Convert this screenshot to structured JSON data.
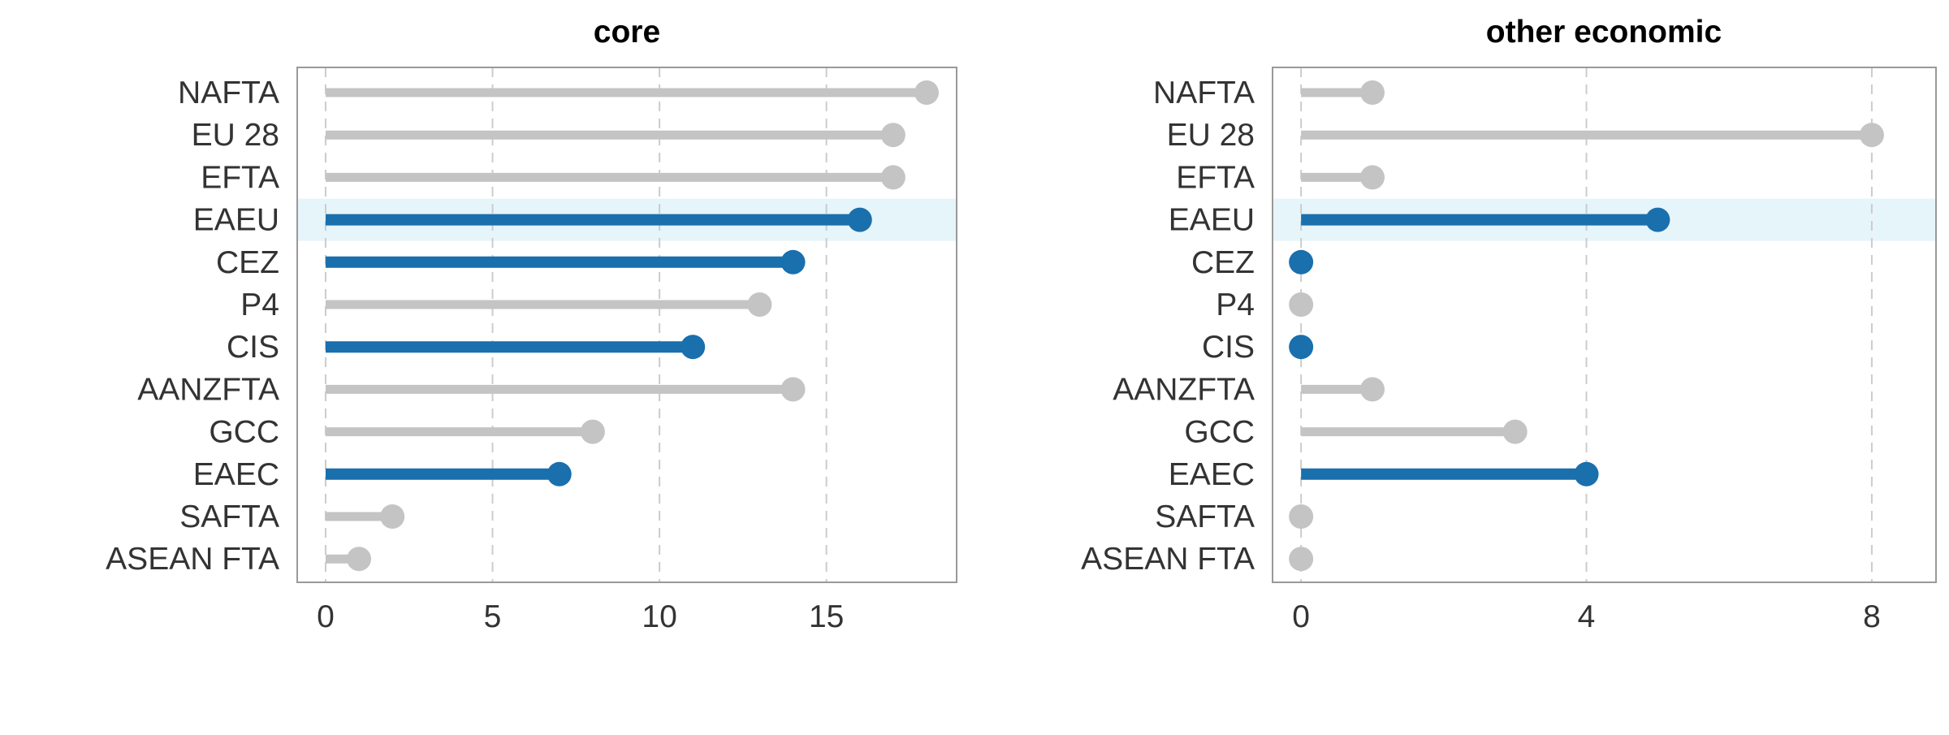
{
  "chart_data": [
    {
      "type": "lollipop",
      "title": "core",
      "categories": [
        "NAFTA",
        "EU 28",
        "EFTA",
        "EAEU",
        "CEZ",
        "P4",
        "CIS",
        "AANZFTA",
        "GCC",
        "EAEC",
        "SAFTA",
        "ASEAN FTA"
      ],
      "values": [
        18,
        17,
        17,
        16,
        14,
        13,
        11,
        14,
        8,
        7,
        2,
        1
      ],
      "highlighted": [
        "EAEU",
        "CEZ",
        "CIS",
        "EAEC"
      ],
      "highlight_band": "EAEU",
      "xticks": [
        0,
        5,
        10,
        15
      ],
      "xlim": [
        -0.85,
        18.9
      ],
      "grid": "vertical dashed"
    },
    {
      "type": "lollipop",
      "title": "other economic",
      "categories": [
        "NAFTA",
        "EU 28",
        "EFTA",
        "EAEU",
        "CEZ",
        "P4",
        "CIS",
        "AANZFTA",
        "GCC",
        "EAEC",
        "SAFTA",
        "ASEAN FTA"
      ],
      "values": [
        1,
        8,
        1,
        5,
        0,
        0,
        0,
        1,
        3,
        4,
        0,
        0
      ],
      "highlighted": [
        "EAEU",
        "CEZ",
        "CIS",
        "EAEC"
      ],
      "highlight_band": "EAEU",
      "xticks": [
        0,
        4,
        8
      ],
      "xlim": [
        -0.4,
        8.9
      ],
      "grid": "vertical dashed"
    }
  ],
  "colors": {
    "highlight": "#1a6fad",
    "default": "#c4c4c4",
    "band": "#e6f5fa",
    "grid": "#cccccc",
    "frame": "#999999",
    "text": "#333333"
  }
}
